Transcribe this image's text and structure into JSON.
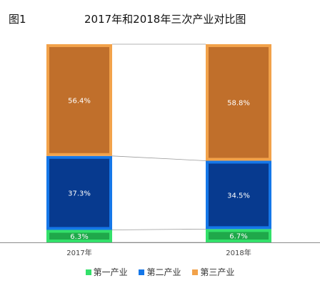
{
  "figure_label": "图1",
  "chart_data": {
    "type": "bar",
    "stacked": true,
    "percent": true,
    "title": "2017年和2018年三次产业对比图",
    "categories": [
      "2017年",
      "2018年"
    ],
    "series": [
      {
        "name": "第一产业",
        "values": [
          6.3,
          6.7
        ],
        "labels": [
          "6.3%",
          "6.7%"
        ],
        "fill": "#1fa84a",
        "border": "#33e06a"
      },
      {
        "name": "第二产业",
        "values": [
          37.3,
          34.5
        ],
        "labels": [
          "37.3%",
          "34.5%"
        ],
        "fill": "#073a8f",
        "border": "#1577e8"
      },
      {
        "name": "第三产业",
        "values": [
          56.4,
          58.8
        ],
        "labels": [
          "56.4%",
          "58.8%"
        ],
        "fill": "#c06f2b",
        "border": "#f2a24a"
      }
    ],
    "ylim": [
      0,
      100
    ],
    "grid": false,
    "series_lines": true,
    "legend_position": "bottom"
  }
}
